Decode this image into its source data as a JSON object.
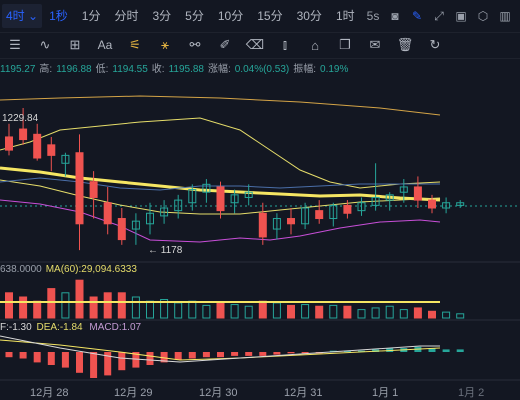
{
  "timeframes": {
    "dropdown": "4时",
    "items": [
      "1秒",
      "1分",
      "分时",
      "3分",
      "5分",
      "10分",
      "15分",
      "30分",
      "1时"
    ]
  },
  "toolbar_right": {
    "speed": "5s",
    "icons": [
      "camera-icon",
      "pencil-icon",
      "expand-icon",
      "settings-icon",
      "gear-icon",
      "layout-icon"
    ]
  },
  "draw_tools": [
    "menu-lines",
    "line-tool",
    "box-tool",
    "text-tool",
    "magnet-tool",
    "ruler-tool",
    "eraser-tool",
    "brush-tool",
    "candle-tool",
    "pin-tool",
    "copy-tool",
    "note-tool",
    "trash-tool",
    "refresh-tool"
  ],
  "draw_text_label": "Aa",
  "info": {
    "open": "1195.27",
    "high_label": "高:",
    "high": "1196.88",
    "low_label": "低:",
    "low": "1194.55",
    "close_label": "收:",
    "close": "1195.88",
    "change_label": "涨幅:",
    "change": "0.04%(0.53)",
    "amp_label": "振幅:",
    "amp": "0.19%"
  },
  "price_labels": {
    "high_mark": "1229.84",
    "low_mark": "← 1178"
  },
  "volume": {
    "value": "638.0000",
    "ma_label": "MA(60):",
    "ma_value": "29,094.6333"
  },
  "macd": {
    "dif": "F:-1.30",
    "dea_label": "DEA:",
    "dea": "-1.84",
    "macd_label": "MACD:",
    "macd": "1.07"
  },
  "dates": [
    "12月 28",
    "12月 29",
    "12月 30",
    "12月 31",
    "1月 1",
    "1月 2"
  ],
  "colors": {
    "up": "#26a69a",
    "down": "#ef5350",
    "accent": "#2962ff",
    "ma_yellow": "#f5e663",
    "boll_mid": "#e6dd6a",
    "boll_up": "#d4a447",
    "boll_low": "#c84fd8"
  },
  "chart_data": {
    "type": "candlestick",
    "candles": [
      {
        "o": 1221,
        "h": 1226,
        "l": 1214,
        "c": 1216
      },
      {
        "o": 1224,
        "h": 1232,
        "l": 1218,
        "c": 1220
      },
      {
        "o": 1222,
        "h": 1226,
        "l": 1212,
        "c": 1213
      },
      {
        "o": 1218,
        "h": 1221,
        "l": 1208,
        "c": 1214
      },
      {
        "o": 1211,
        "h": 1215,
        "l": 1206,
        "c": 1214
      },
      {
        "o": 1215,
        "h": 1222,
        "l": 1178,
        "c": 1188
      },
      {
        "o": 1204,
        "h": 1208,
        "l": 1190,
        "c": 1198
      },
      {
        "o": 1196,
        "h": 1202,
        "l": 1184,
        "c": 1188
      },
      {
        "o": 1190,
        "h": 1194,
        "l": 1180,
        "c": 1182
      },
      {
        "o": 1186,
        "h": 1192,
        "l": 1180,
        "c": 1189
      },
      {
        "o": 1188,
        "h": 1196,
        "l": 1184,
        "c": 1192
      },
      {
        "o": 1191,
        "h": 1197,
        "l": 1188,
        "c": 1194
      },
      {
        "o": 1193,
        "h": 1199,
        "l": 1190,
        "c": 1197
      },
      {
        "o": 1196,
        "h": 1203,
        "l": 1193,
        "c": 1201
      },
      {
        "o": 1200,
        "h": 1205,
        "l": 1196,
        "c": 1203
      },
      {
        "o": 1202,
        "h": 1204,
        "l": 1190,
        "c": 1193
      },
      {
        "o": 1196,
        "h": 1201,
        "l": 1192,
        "c": 1199
      },
      {
        "o": 1198,
        "h": 1203,
        "l": 1195,
        "c": 1200
      },
      {
        "o": 1192,
        "h": 1196,
        "l": 1180,
        "c": 1183
      },
      {
        "o": 1186,
        "h": 1192,
        "l": 1182,
        "c": 1190
      },
      {
        "o": 1190,
        "h": 1194,
        "l": 1184,
        "c": 1188
      },
      {
        "o": 1188,
        "h": 1196,
        "l": 1186,
        "c": 1194
      },
      {
        "o": 1193,
        "h": 1197,
        "l": 1188,
        "c": 1190
      },
      {
        "o": 1190,
        "h": 1196,
        "l": 1187,
        "c": 1195
      },
      {
        "o": 1195,
        "h": 1197,
        "l": 1190,
        "c": 1192
      },
      {
        "o": 1193,
        "h": 1198,
        "l": 1191,
        "c": 1196
      },
      {
        "o": 1195,
        "h": 1211,
        "l": 1193,
        "c": 1198
      },
      {
        "o": 1197,
        "h": 1200,
        "l": 1193,
        "c": 1199
      },
      {
        "o": 1200,
        "h": 1205,
        "l": 1196,
        "c": 1202
      },
      {
        "o": 1202,
        "h": 1206,
        "l": 1194,
        "c": 1197
      },
      {
        "o": 1197,
        "h": 1199,
        "l": 1192,
        "c": 1194
      },
      {
        "o": 1194,
        "h": 1198,
        "l": 1192,
        "c": 1196
      },
      {
        "o": 1195,
        "h": 1197,
        "l": 1194,
        "c": 1196
      }
    ],
    "volumes": [
      30,
      25,
      20,
      35,
      30,
      45,
      25,
      30,
      30,
      25,
      20,
      22,
      18,
      20,
      15,
      18,
      16,
      14,
      20,
      18,
      15,
      16,
      14,
      15,
      14,
      10,
      12,
      14,
      10,
      12,
      8,
      7,
      5
    ],
    "macd_hist": [
      -4,
      -5,
      -8,
      -10,
      -12,
      -16,
      -20,
      -18,
      -14,
      -12,
      -10,
      -8,
      -6,
      -5,
      -4,
      -4,
      -3,
      -3,
      -3,
      -2,
      -1,
      -1,
      -1,
      1,
      1,
      1,
      2,
      3,
      3,
      4,
      3,
      2,
      2
    ]
  }
}
